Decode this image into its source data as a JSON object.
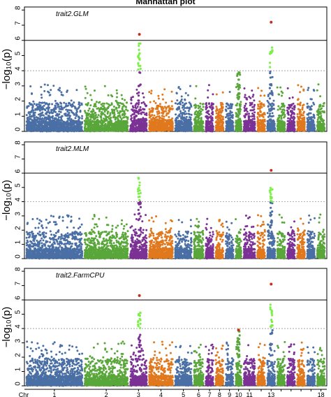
{
  "figure": {
    "title": "Manhattan plot",
    "ylabel": "−log₁₀(p)"
  },
  "chart_data": {
    "type": "scatter",
    "title": "Manhattan plot",
    "ylabel": "−log₁₀(p)",
    "x_axis_label": "Chr",
    "chromosomes": [
      "1",
      "2",
      "3",
      "4",
      "5",
      "6",
      "7",
      "8",
      "9",
      "10",
      "11",
      "12",
      "13",
      "14",
      "15",
      "16",
      "17",
      "18"
    ],
    "chromosome_tick_labels": [
      "1",
      "2",
      "3",
      "4",
      "5",
      "6",
      "7",
      "8",
      "9",
      "10",
      "11",
      "",
      "13",
      "",
      "",
      "",
      "",
      "18"
    ],
    "chromosome_relative_lengths": [
      3.2,
      2.5,
      1.0,
      1.4,
      1.0,
      0.6,
      0.5,
      0.5,
      0.5,
      0.4,
      0.7,
      0.5,
      0.5,
      0.5,
      0.5,
      0.5,
      0.5,
      0.5
    ],
    "chromosome_colors": [
      "#4a6fa5",
      "#59a63a",
      "#7b3294",
      "#e0781e",
      "#4a6fa5",
      "#59a63a",
      "#7b3294",
      "#e0781e",
      "#4a6fa5",
      "#59a63a",
      "#7b3294",
      "#e0781e",
      "#4a6fa5",
      "#59a63a",
      "#7b3294",
      "#e0781e",
      "#4a6fa5",
      "#59a63a"
    ],
    "y_ticks": [
      0,
      1,
      2,
      3,
      4,
      5,
      6,
      7,
      8
    ],
    "ylim": [
      0,
      8.2
    ],
    "significance_threshold": 6,
    "suggestive_threshold": 4,
    "highlight_colors": {
      "suggestive": "#7cf048",
      "significant": "#c0321e"
    },
    "panels": [
      {
        "name": "trait2.GLM",
        "peaks": [
          {
            "chr": "3",
            "pos": 0.55,
            "max": 5.8,
            "top_point": 6.4
          },
          {
            "chr": "13",
            "pos": 0.5,
            "max": 5.7,
            "top_point": 7.2
          },
          {
            "chr": "10",
            "pos": 0.5,
            "max": 4.0
          }
        ]
      },
      {
        "name": "trait2.MLM",
        "peaks": [
          {
            "chr": "3",
            "pos": 0.55,
            "max": 5.7
          },
          {
            "chr": "13",
            "pos": 0.5,
            "max": 5.3,
            "top_point": 6.2
          }
        ]
      },
      {
        "name": "trait2.FarmCPU",
        "peaks": [
          {
            "chr": "3",
            "pos": 0.55,
            "max": 5.6,
            "top_point": 6.3
          },
          {
            "chr": "13",
            "pos": 0.5,
            "max": 5.7,
            "top_point": 7.1
          },
          {
            "chr": "10",
            "pos": 0.5,
            "max": 3.9,
            "top_point": 3.9
          }
        ]
      }
    ]
  }
}
